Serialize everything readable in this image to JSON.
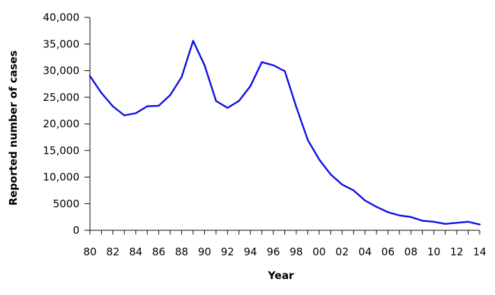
{
  "chart_data": {
    "type": "line",
    "xlabel": "Year",
    "ylabel": "Reported number of cases",
    "ylim": [
      0,
      40000
    ],
    "yticks": [
      0,
      5000,
      10000,
      15000,
      20000,
      25000,
      30000,
      35000,
      40000
    ],
    "ytick_labels": [
      "0",
      "5000",
      "10,000",
      "15,000",
      "20,000",
      "25,000",
      "30,000",
      "35,000",
      "40,000"
    ],
    "xlim": [
      1980,
      2014
    ],
    "xticks": [
      1980,
      1982,
      1984,
      1986,
      1988,
      1990,
      1992,
      1994,
      1996,
      1998,
      2000,
      2002,
      2004,
      2006,
      2008,
      2010,
      2012,
      2014
    ],
    "xtick_labels": [
      "80",
      "82",
      "84",
      "86",
      "88",
      "90",
      "92",
      "94",
      "96",
      "98",
      "00",
      "02",
      "04",
      "06",
      "08",
      "10",
      "12",
      "14"
    ],
    "grid": false,
    "line_color": "#1010e6",
    "series": [
      {
        "x": [
          1980,
          1981,
          1982,
          1983,
          1984,
          1985,
          1986,
          1987,
          1988,
          1989,
          1990,
          1991,
          1992,
          1993,
          1994,
          1995,
          1996,
          1997,
          1998,
          1999,
          2000,
          2001,
          2002,
          2003,
          2004,
          2005,
          2006,
          2007,
          2008,
          2009,
          2010,
          2011,
          2012,
          2013,
          2014
        ],
        "values": [
          29000,
          25800,
          23300,
          21600,
          22000,
          23300,
          23400,
          25400,
          28800,
          35600,
          31000,
          24300,
          23000,
          24300,
          27100,
          31600,
          31000,
          29900,
          23200,
          17000,
          13300,
          10500,
          8600,
          7500,
          5600,
          4400,
          3400,
          2800,
          2500,
          1800,
          1600,
          1200,
          1400,
          1600,
          1100
        ]
      }
    ]
  }
}
